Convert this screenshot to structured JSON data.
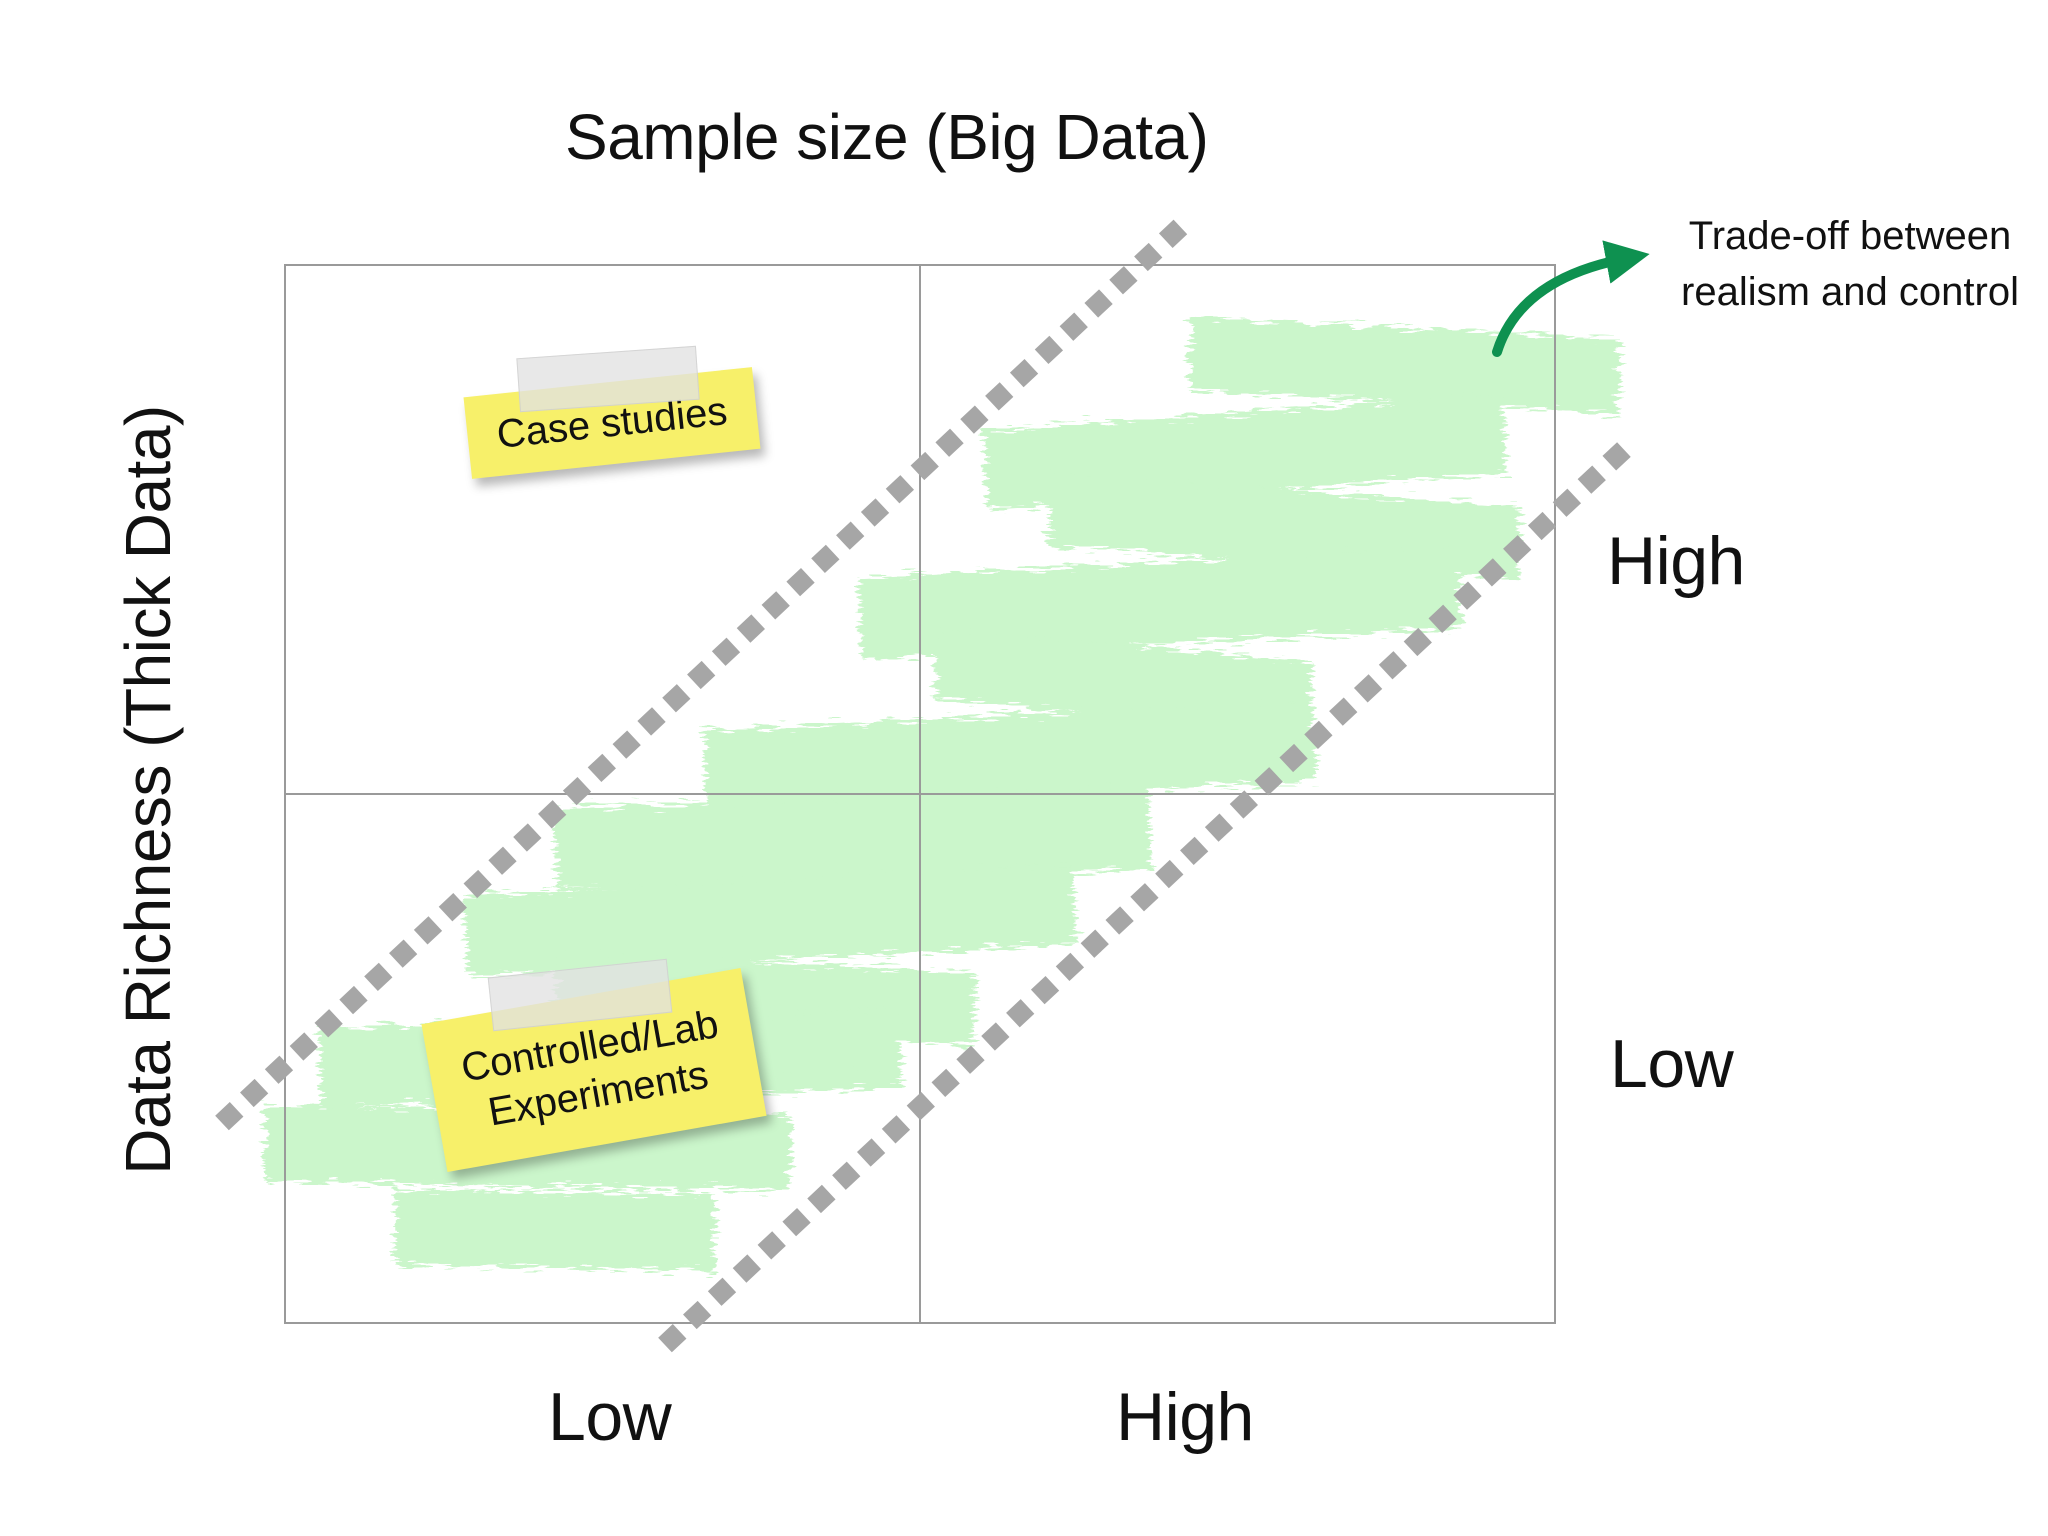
{
  "axes": {
    "x_title": "Sample size (Big Data)",
    "y_title": "Data Richness (Thick Data)",
    "x_ticks": [
      "Low",
      "High"
    ],
    "y_ticks": [
      "High",
      "Low"
    ]
  },
  "quadrants": {
    "top_left": "Case studies",
    "bottom_left": "Controlled/Lab Experiments"
  },
  "annotation": {
    "text": "Trade-off between realism and control"
  },
  "colors": {
    "highlight": "#c6f5c6",
    "arrow": "#0e9150",
    "dotted_band": "#a6a6a6",
    "sticky_note": "#f7f06a",
    "grid": "#9a9a9a"
  }
}
